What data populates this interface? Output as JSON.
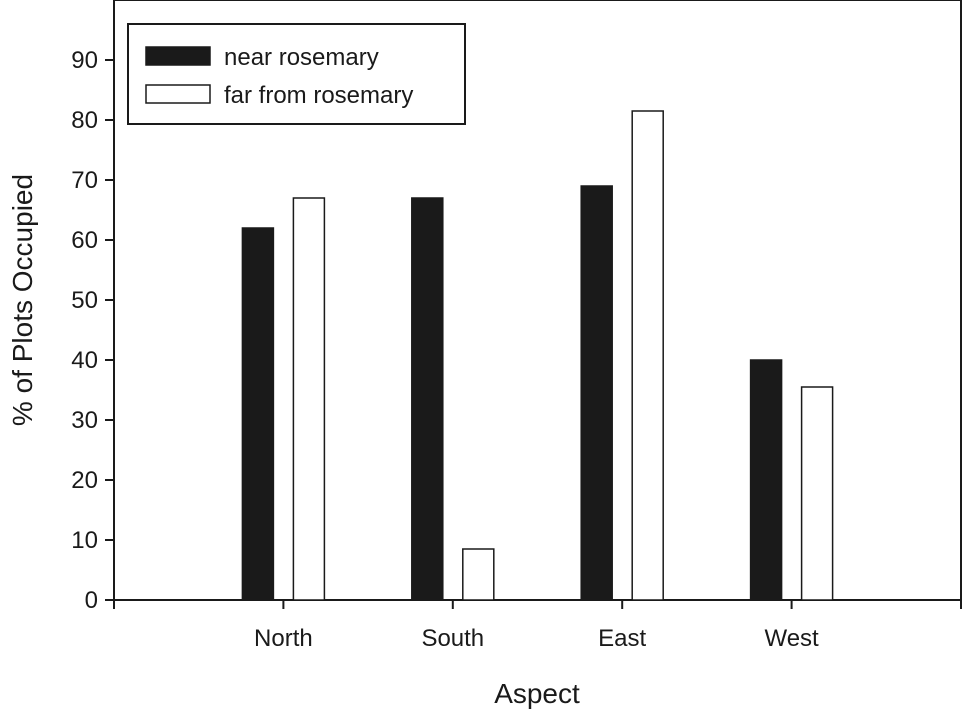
{
  "colors": {
    "near": "#1a1a1a",
    "far": "#ffffff",
    "axis": "#1a1a1a"
  },
  "chart_data": {
    "type": "bar",
    "title": "",
    "xlabel": "Aspect",
    "ylabel": "% of Plots Occupied",
    "categories": [
      "North",
      "South",
      "East",
      "West"
    ],
    "series": [
      {
        "name": "near rosemary",
        "values": [
          62,
          67,
          69,
          40
        ]
      },
      {
        "name": "far from rosemary",
        "values": [
          67,
          8.5,
          81.5,
          35.5
        ]
      }
    ],
    "ylim": [
      0,
      100
    ],
    "yticks": [
      0,
      10,
      20,
      30,
      40,
      50,
      60,
      70,
      80,
      90
    ],
    "grid": false,
    "legend": "top-left"
  }
}
